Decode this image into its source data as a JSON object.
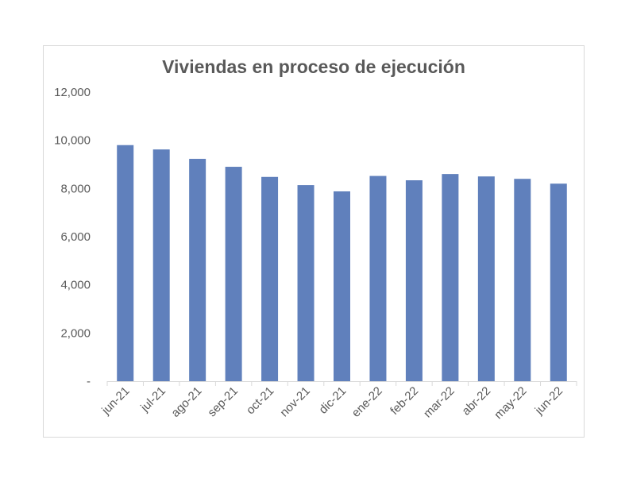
{
  "chart_data": {
    "type": "bar",
    "title": "Viviendas en proceso de ejecución",
    "xlabel": "",
    "ylabel": "",
    "categories": [
      "jun-21",
      "jul-21",
      "ago-21",
      "sep-21",
      "oct-21",
      "nov-21",
      "dic-21",
      "ene-22",
      "feb-22",
      "mar-22",
      "abr-22",
      "may-22",
      "jun-22"
    ],
    "values": [
      9800,
      9620,
      9230,
      8900,
      8480,
      8140,
      7880,
      8520,
      8340,
      8600,
      8500,
      8400,
      8200
    ],
    "ylim": [
      0,
      12000
    ],
    "y_ticks": [
      0,
      2000,
      4000,
      6000,
      8000,
      10000,
      12000
    ],
    "y_tick_labels": [
      "-",
      "2,000",
      "4,000",
      "6,000",
      "8,000",
      "10,000",
      "12,000"
    ],
    "grid": false,
    "legend": "none",
    "bar_color": "#6080bc",
    "axis_color": "#d9d9d9",
    "text_color": "#595959"
  }
}
